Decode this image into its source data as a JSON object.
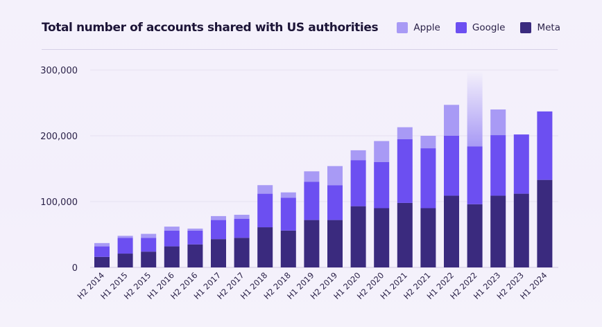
{
  "chart_data": {
    "type": "bar",
    "stacked": true,
    "title": "Total number of accounts shared with US authorities",
    "xlabel": "",
    "ylabel": "",
    "ylim": [
      0,
      300000
    ],
    "yticks": [
      "0",
      "100,000",
      "200,000",
      "300,000"
    ],
    "ytick_values": [
      0,
      100000,
      200000,
      300000
    ],
    "grid": true,
    "legend_position": "top-right",
    "categories": [
      "H2 2014",
      "H1 2015",
      "H2 2015",
      "H1 2016",
      "H2 2016",
      "H1 2017",
      "H2 2017",
      "H1 2018",
      "H2 2018",
      "H1 2019",
      "H2 2019",
      "H1 2020",
      "H2 2020",
      "H1 2021",
      "H2 2021",
      "H1 2022",
      "H2 2022",
      "H1 2023",
      "H2 2023",
      "H1 2024"
    ],
    "series": [
      {
        "name": "Meta",
        "color": "#3a2a7e",
        "values": [
          16000,
          21000,
          24000,
          32000,
          35000,
          43000,
          45000,
          61000,
          56000,
          72000,
          72000,
          93000,
          90000,
          98000,
          90000,
          109000,
          96000,
          109000,
          112000,
          133000
        ]
      },
      {
        "name": "Google",
        "color": "#6c4ff1",
        "values": [
          16000,
          24000,
          21000,
          24000,
          21000,
          29000,
          29000,
          51000,
          50000,
          58000,
          53000,
          70000,
          70000,
          97000,
          91000,
          91000,
          88000,
          92000,
          90000,
          104000
        ]
      },
      {
        "name": "Apple",
        "color": "#a89af5",
        "values": [
          5000,
          3000,
          6000,
          6000,
          3000,
          6000,
          6000,
          13000,
          8000,
          16000,
          29000,
          15000,
          32000,
          18000,
          19000,
          47000,
          114000,
          39000,
          0,
          0
        ]
      }
    ],
    "fade_top_category": "H2 2022"
  },
  "legend": [
    {
      "label": "Apple",
      "color": "#a89af5"
    },
    {
      "label": "Google",
      "color": "#6c4ff1"
    },
    {
      "label": "Meta",
      "color": "#3a2a7e"
    }
  ]
}
